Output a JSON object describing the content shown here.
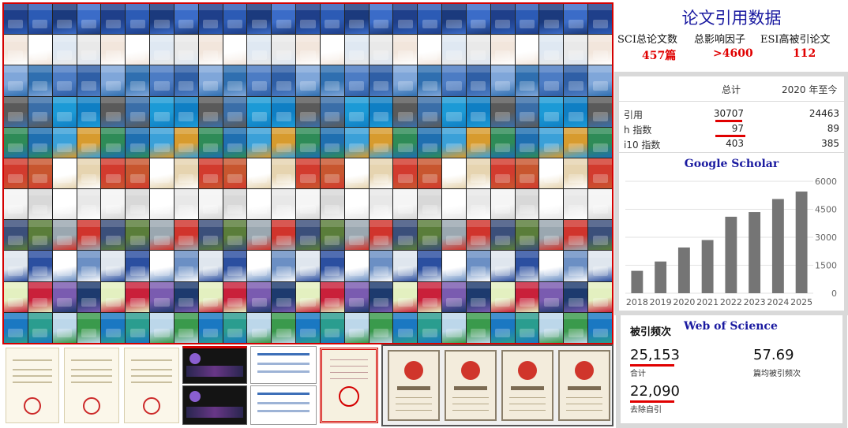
{
  "page_title": "论文引用数据",
  "summary": [
    {
      "label": "SCI总论文数",
      "value": "457篇"
    },
    {
      "label": "总影响因子",
      "value": ">4600"
    },
    {
      "label": "ESI高被引论文",
      "value": "112"
    }
  ],
  "google_scholar": {
    "label": "Google Scholar",
    "col_total": "总计",
    "col_recent": "2020 年至今",
    "rows": [
      {
        "label": "引用",
        "total": "30707",
        "recent": "24463"
      },
      {
        "label": "h 指数",
        "total": "97",
        "recent": "89"
      },
      {
        "label": "i10 指数",
        "total": "403",
        "recent": "385"
      }
    ]
  },
  "chart_data": {
    "type": "bar",
    "categories": [
      "2018",
      "2019",
      "2020",
      "2021",
      "2022",
      "2023",
      "2024",
      "2025"
    ],
    "values": [
      1200,
      1700,
      2450,
      2850,
      4100,
      4350,
      5050,
      5450
    ],
    "yticks": [
      "0",
      "1500",
      "3000",
      "4500",
      "6000"
    ],
    "ylim": [
      0,
      6000
    ],
    "bar_color": "#757575",
    "grid": true,
    "title": "",
    "xlabel": "",
    "ylabel": ""
  },
  "web_of_science": {
    "label": "Web of Science",
    "title": "被引频次",
    "total_value": "25,153",
    "total_label": "合计",
    "avg_value": "57.69",
    "avg_label": "篇均被引频次",
    "nonself_value": "22,090",
    "nonself_label": "去除自引"
  },
  "colors": {
    "accent_red": "#e00000",
    "title_blue": "#1a1aa0"
  }
}
